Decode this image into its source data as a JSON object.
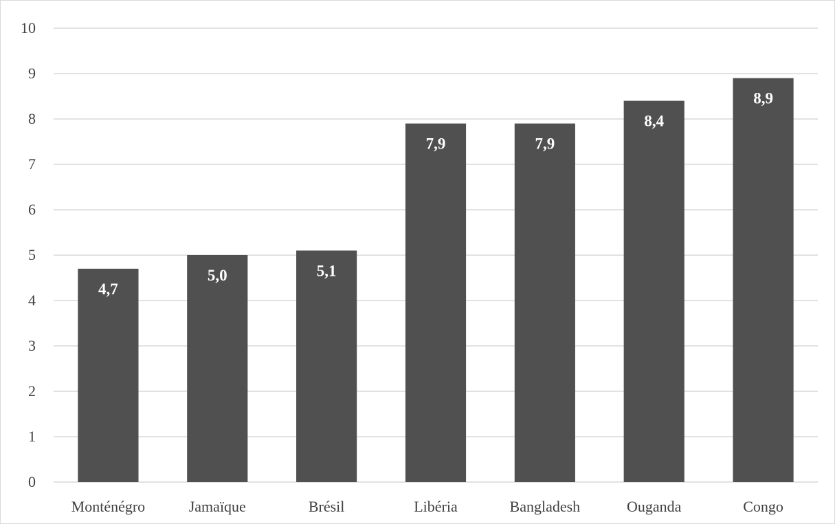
{
  "chart_data": {
    "type": "bar",
    "categories": [
      "Monténégro",
      "Jamaïque",
      "Brésil",
      "Libéria",
      "Bangladesh",
      "Ouganda",
      "Congo"
    ],
    "values": [
      4.7,
      5.0,
      5.1,
      7.9,
      7.9,
      8.4,
      8.9
    ],
    "value_labels": [
      "4,7",
      "5,0",
      "5,1",
      "7,9",
      "7,9",
      "8,4",
      "8,9"
    ],
    "title": "",
    "xlabel": "",
    "ylabel": "",
    "ylim": [
      0,
      10
    ],
    "yticks": [
      0,
      1,
      2,
      3,
      4,
      5,
      6,
      7,
      8,
      9,
      10
    ],
    "grid": true,
    "legend": "none",
    "colors": {
      "bar": "#505050",
      "grid": "#d9d9d9",
      "frame": "#d9d9d9",
      "text": "#404040",
      "data_label": "#ffffff"
    }
  }
}
